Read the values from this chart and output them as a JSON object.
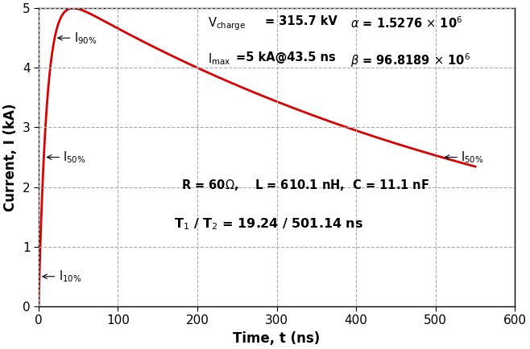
{
  "title": "",
  "xlabel": "Time, t (ns)",
  "ylabel": "Current, I (kA)",
  "xlim": [
    0,
    600
  ],
  "ylim": [
    0,
    5
  ],
  "xticks": [
    0,
    100,
    200,
    300,
    400,
    500,
    600
  ],
  "yticks": [
    0,
    1,
    2,
    3,
    4,
    5
  ],
  "alpha_param": 1527600.0,
  "beta_param": 96818900.0,
  "I_max": 5.0,
  "t_max_ns": 43.5,
  "V_charge": 315.7,
  "R": 60,
  "L": 610.1,
  "C": 11.1,
  "T1": 19.24,
  "T2": 501.14,
  "line_color": "#dd0000",
  "line_width": 2.0,
  "grid_color": "#aaaaaa",
  "background_color": "#ffffff",
  "figsize": [
    6.58,
    4.34
  ],
  "dpi": 100
}
